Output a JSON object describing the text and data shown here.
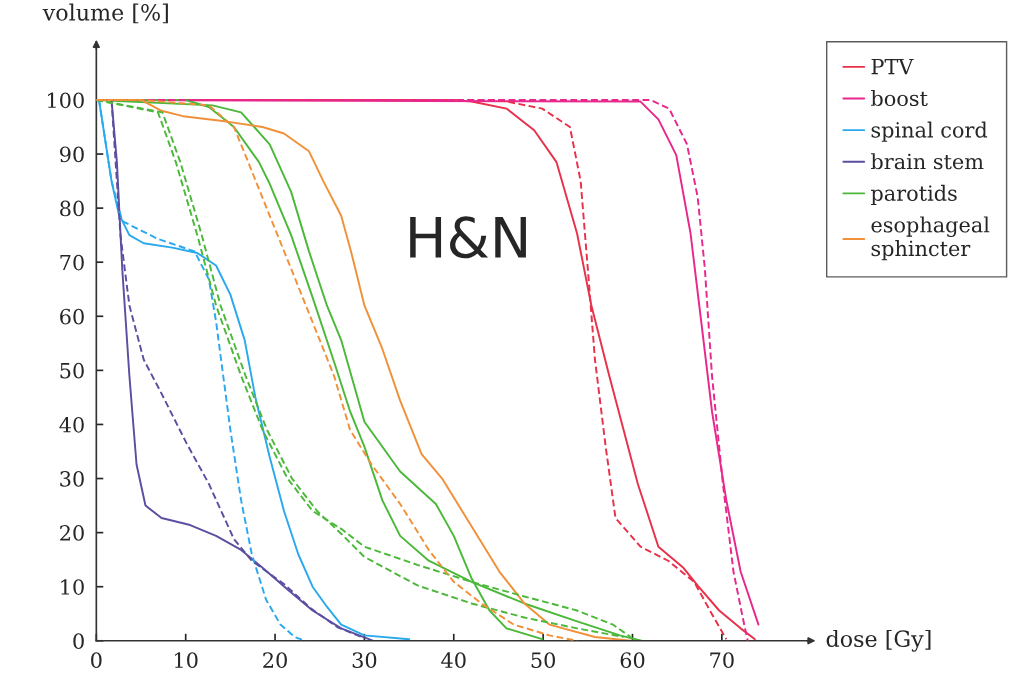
{
  "chart_data": {
    "type": "line",
    "xlabel": "dose [Gy]",
    "ylabel": "volume [%]",
    "xlim": [
      0,
      80
    ],
    "ylim": [
      0,
      110
    ],
    "xticks": [
      0,
      10,
      20,
      30,
      40,
      50,
      60,
      70
    ],
    "yticks": [
      0,
      10,
      20,
      30,
      40,
      50,
      60,
      70,
      80,
      90,
      100
    ],
    "grid": false,
    "legend": "top right",
    "line_style": "solid",
    "annotations": [
      "H&N"
    ],
    "series": [
      {
        "name": "PTV",
        "color": "#e8314a",
        "x": [
          0,
          40,
          42,
          45.9,
          49,
          51.5,
          53.8,
          55.4,
          57.4,
          59,
          60.6,
          62.9,
          65.7,
          67.3,
          69.7,
          72.1,
          73.7
        ],
        "values": [
          100,
          100,
          99.7,
          98.4,
          94.4,
          88.5,
          75.3,
          62,
          49,
          39,
          29,
          17.4,
          13.5,
          10.2,
          5.6,
          2.3,
          0.3
        ]
      },
      {
        "color": "#e8314a",
        "line_style": "dashed",
        "x": [
          0,
          45,
          49.9,
          53,
          54.2,
          55,
          55.8,
          57,
          58.1,
          60.9,
          64,
          66.9,
          68.9,
          70.5
        ],
        "values": [
          100,
          100,
          98.4,
          95,
          85,
          68.8,
          52,
          35.9,
          22.7,
          17.4,
          14.8,
          10.9,
          4.9,
          0.3
        ]
      },
      {
        "name": "boost",
        "color": "#e8288c",
        "x": [
          0,
          60.9,
          62.9,
          64.9,
          66.5,
          67.7,
          68.9,
          70.5,
          72.1,
          74.1
        ],
        "values": [
          100,
          99.7,
          96.4,
          89.8,
          75.3,
          58.9,
          42.4,
          26,
          12.8,
          3
        ]
      },
      {
        "color": "#e8288c",
        "line_style": "dashed",
        "x": [
          0,
          62,
          64.1,
          66.1,
          67.3,
          68.1,
          68.9,
          70.1,
          71.3,
          72.5,
          72.9
        ],
        "values": [
          100,
          100,
          98.4,
          91.8,
          82,
          68.8,
          49,
          29.3,
          12.8,
          3,
          0
        ]
      },
      {
        "name": "spinal cord",
        "color": "#2aa9ee",
        "x": [
          0.3,
          1.7,
          2.5,
          3.7,
          5.3,
          8.5,
          11.3,
          13.4,
          15,
          16.6,
          17.8,
          19.4,
          21,
          22.6,
          24.2,
          25.8,
          27.4,
          30,
          35
        ],
        "values": [
          100,
          85,
          79,
          75,
          73.5,
          72.7,
          71.7,
          69.4,
          64,
          55.6,
          45,
          34,
          24,
          16,
          10,
          6.3,
          3,
          1,
          0.3
        ]
      },
      {
        "color": "#2aa9ee",
        "line_style": "dashed",
        "x": [
          0.3,
          1.7,
          2.9,
          6.9,
          11,
          12.6,
          13.4,
          14.2,
          15,
          16.2,
          17.4,
          19,
          20.6,
          22.2,
          23.4
        ],
        "values": [
          100,
          85,
          77.6,
          74.3,
          72,
          66.8,
          59,
          49,
          39,
          26,
          16,
          7.6,
          3,
          0.7,
          0
        ]
      },
      {
        "name": "brain stem",
        "color": "#5b4fa0",
        "x": [
          1.7,
          2.3,
          2.9,
          3.7,
          4.5,
          5.5,
          7.3,
          10.5,
          13.4,
          16.2,
          18.6,
          21.4,
          24.2,
          27.4,
          31
        ],
        "values": [
          100,
          88.5,
          68.8,
          49,
          32.6,
          25,
          22.7,
          21.4,
          19.4,
          16.8,
          13.5,
          9.5,
          5.6,
          2.3,
          0
        ]
      },
      {
        "color": "#5b4fa0",
        "line_style": "dashed",
        "x": [
          1.7,
          2.7,
          3.7,
          5.3,
          7.3,
          10.1,
          12.6,
          15.4,
          17.4,
          21,
          24,
          27,
          30
        ],
        "values": [
          100,
          75,
          62,
          52,
          45.7,
          36.5,
          29,
          18.8,
          14.8,
          10.5,
          6,
          2.5,
          0.5
        ]
      },
      {
        "name": "parotids",
        "color": "#4cb83a",
        "x": [
          0,
          10,
          12.6,
          15.4,
          18.2,
          19.4,
          21.8,
          24.2,
          26.6,
          28.4,
          30,
          32,
          34,
          37.2,
          42,
          47.9,
          53.8,
          58.6,
          61
        ],
        "values": [
          100,
          100,
          98.7,
          95,
          88.5,
          84.5,
          75,
          63.5,
          51.6,
          42.4,
          35.9,
          26,
          19.4,
          14.8,
          10.9,
          6.9,
          3.6,
          1,
          0
        ]
      },
      {
        "color": "#4cb83a",
        "x": [
          0,
          13,
          16.2,
          19.4,
          21.8,
          23.8,
          25.8,
          27.4,
          30,
          34,
          38,
          40,
          42,
          44,
          45.9,
          49.9
        ],
        "values": [
          100,
          99,
          97.7,
          91.8,
          83,
          72,
          62,
          55.6,
          40.5,
          31.3,
          25.3,
          19.4,
          11.5,
          5.6,
          2.3,
          0.3
        ]
      },
      {
        "color": "#4cb83a",
        "line_style": "dashed",
        "x": [
          0,
          6.9,
          8.9,
          11.3,
          13.4,
          16.2,
          18.6,
          21.4,
          24.2,
          27.4,
          30,
          36,
          42,
          47.9,
          53.8,
          57.8,
          59.8
        ],
        "values": [
          100,
          97.7,
          88.5,
          75,
          62,
          49,
          39,
          30,
          24,
          20.7,
          17.4,
          14,
          10.9,
          8.2,
          5.6,
          3,
          0.7
        ]
      },
      {
        "color": "#4cb83a",
        "line_style": "dashed",
        "x": [
          0,
          7.4,
          9.4,
          11.8,
          13.9,
          16.7,
          19.1,
          21.9,
          24.7,
          27.4,
          30,
          36,
          42,
          47.9,
          53.8,
          59
        ],
        "values": [
          100,
          97.7,
          88.5,
          75,
          62,
          49,
          39,
          30,
          24,
          19.8,
          15.5,
          10.2,
          6.9,
          4.3,
          2.3,
          0.7
        ]
      },
      {
        "name": "esophageal\nsphincter",
        "color": "#f0913a",
        "x": [
          0,
          5,
          7.3,
          9.7,
          14.6,
          18.6,
          21,
          23.8,
          25.4,
          27.4,
          28.5,
          30,
          32,
          34,
          36.4,
          38.7,
          41.9,
          45.1,
          47.9,
          50.7,
          55.8,
          59.8
        ],
        "values": [
          100,
          100,
          98,
          97,
          96,
          95,
          93.8,
          90.5,
          85,
          78.6,
          72,
          62,
          54,
          44.4,
          34.5,
          30,
          21.4,
          12.8,
          6.9,
          3,
          0.7,
          0
        ]
      },
      {
        "color": "#f0913a",
        "line_style": "dashed",
        "x": [
          0,
          5,
          12.6,
          15.4,
          17,
          19.4,
          21.8,
          24.2,
          26.6,
          28.4,
          30.8,
          34,
          37.2,
          40,
          43.1,
          46.7,
          50.7,
          53.8
        ],
        "values": [
          100,
          100,
          99,
          95,
          88.5,
          78.6,
          68.8,
          58.9,
          49,
          39,
          32.6,
          25.3,
          16.8,
          10.9,
          6.9,
          3,
          1,
          0
        ]
      }
    ]
  }
}
